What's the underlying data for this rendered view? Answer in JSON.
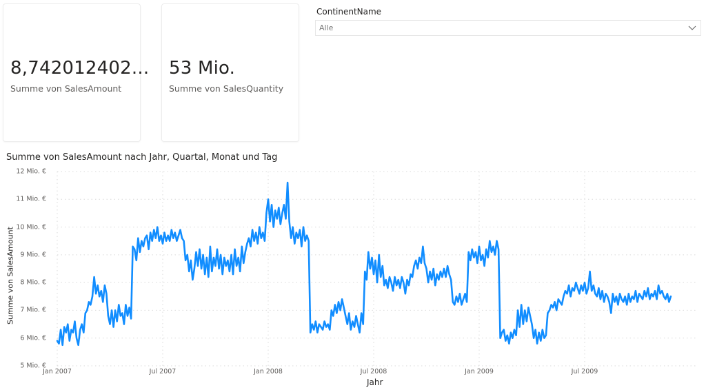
{
  "cards": [
    {
      "value": "8,742012402...",
      "label": "Summe von SalesAmount"
    },
    {
      "value": "53 Mio.",
      "label": "Summe von SalesQuantity"
    }
  ],
  "slicer": {
    "title": "ContinentName",
    "selected": "Alle",
    "icon": "chevron-down-icon"
  },
  "chart": {
    "title": "Summe von SalesAmount nach Jahr, Quartal, Monat und Tag",
    "ylabel": "Summe von SalesAmount",
    "xlabel": "Jahr",
    "y_ticks": [
      "12 Mio. €",
      "11 Mio. €",
      "10 Mio. €",
      "9 Mio. €",
      "8 Mio. €",
      "7 Mio. €",
      "6 Mio. €",
      "5 Mio. €"
    ],
    "x_ticks": [
      "Jan 2007",
      "Jul 2007",
      "Jan 2008",
      "Jul 2008",
      "Jan 2009",
      "Jul 2009"
    ],
    "line_color": "#118DFF"
  },
  "chart_data": {
    "type": "line",
    "title": "Summe von SalesAmount nach Jahr, Quartal, Monat und Tag",
    "xlabel": "Jahr",
    "ylabel": "Summe von SalesAmount",
    "ylim": [
      5,
      12
    ],
    "y_unit": "Mio. €",
    "x_range": [
      "2007-01-01",
      "2009-12-31"
    ],
    "x_tick_labels": [
      "Jan 2007",
      "Jul 2007",
      "Jan 2008",
      "Jul 2008",
      "Jan 2009",
      "Jul 2009"
    ],
    "y_tick_labels": [
      "5 Mio. €",
      "6 Mio. €",
      "7 Mio. €",
      "8 Mio. €",
      "9 Mio. €",
      "10 Mio. €",
      "11 Mio. €",
      "12 Mio. €"
    ],
    "grid": true,
    "legend": false,
    "series": [
      {
        "name": "Summe von SalesAmount",
        "x_month_offset": [
          0.0,
          0.1,
          0.2,
          0.3,
          0.4,
          0.5,
          0.6,
          0.7,
          0.8,
          0.9,
          1.0,
          1.1,
          1.2,
          1.3,
          1.4,
          1.5,
          1.6,
          1.7,
          1.8,
          1.9,
          2.0,
          2.1,
          2.2,
          2.3,
          2.4,
          2.5,
          2.6,
          2.7,
          2.8,
          2.9,
          3.0,
          3.1,
          3.2,
          3.3,
          3.4,
          3.5,
          3.6,
          3.7,
          3.8,
          3.9,
          4.0,
          4.1,
          4.2,
          4.3,
          4.4,
          4.5,
          4.6,
          4.7,
          4.8,
          4.9,
          5.0,
          5.1,
          5.2,
          5.3,
          5.4,
          5.5,
          5.6,
          5.7,
          5.8,
          5.9,
          6.0,
          6.1,
          6.2,
          6.3,
          6.4,
          6.5,
          6.6,
          6.7,
          6.8,
          6.9,
          7.0,
          7.1,
          7.2,
          7.3,
          7.4,
          7.5,
          7.6,
          7.7,
          7.8,
          7.9,
          8.0,
          8.1,
          8.2,
          8.3,
          8.4,
          8.5,
          8.6,
          8.7,
          8.8,
          8.9,
          9.0,
          9.1,
          9.2,
          9.3,
          9.4,
          9.5,
          9.6,
          9.7,
          9.8,
          9.9,
          10.0,
          10.1,
          10.2,
          10.3,
          10.4,
          10.5,
          10.6,
          10.7,
          10.8,
          10.9,
          11.0,
          11.1,
          11.2,
          11.3,
          11.4,
          11.5,
          11.6,
          11.7,
          11.8,
          11.9,
          12.0,
          12.1,
          12.2,
          12.3,
          12.4,
          12.5,
          12.6,
          12.7,
          12.8,
          12.9,
          13.0,
          13.1,
          13.2,
          13.3,
          13.4,
          13.5,
          13.6,
          13.7,
          13.8,
          13.9,
          14.0,
          14.1,
          14.2,
          14.3,
          14.4,
          14.5,
          14.6,
          14.7,
          14.8,
          14.9,
          15.0,
          15.1,
          15.2,
          15.3,
          15.4,
          15.5,
          15.6,
          15.7,
          15.8,
          15.9,
          16.0,
          16.1,
          16.2,
          16.3,
          16.4,
          16.5,
          16.6,
          16.7,
          16.8,
          16.9,
          17.0,
          17.1,
          17.2,
          17.3,
          17.4,
          17.5,
          17.6,
          17.7,
          17.8,
          17.9,
          18.0,
          18.1,
          18.2,
          18.3,
          18.4,
          18.5,
          18.6,
          18.7,
          18.8,
          18.9,
          19.0,
          19.1,
          19.2,
          19.3,
          19.4,
          19.5,
          19.6,
          19.7,
          19.8,
          19.9,
          20.0,
          20.1,
          20.2,
          20.3,
          20.4,
          20.5,
          20.6,
          20.7,
          20.8,
          20.9,
          21.0,
          21.1,
          21.2,
          21.3,
          21.4,
          21.5,
          21.6,
          21.7,
          21.8,
          21.9,
          22.0,
          22.1,
          22.2,
          22.3,
          22.4,
          22.5,
          22.6,
          22.7,
          22.8,
          22.9,
          23.0,
          23.1,
          23.2,
          23.3,
          23.4,
          23.5,
          23.6,
          23.7,
          23.8,
          23.9,
          24.0,
          24.1,
          24.2,
          24.3,
          24.4,
          24.5,
          24.6,
          24.7,
          24.8,
          24.9,
          25.0,
          25.1,
          25.2,
          25.3,
          25.4,
          25.5,
          25.6,
          25.7,
          25.8,
          25.9,
          26.0,
          26.1,
          26.2,
          26.3,
          26.4,
          26.5,
          26.6,
          26.7,
          26.8,
          26.9,
          27.0,
          27.1,
          27.2,
          27.3,
          27.4,
          27.5,
          27.6,
          27.7,
          27.8,
          27.9,
          28.0,
          28.1,
          28.2,
          28.3,
          28.4,
          28.5,
          28.6,
          28.7,
          28.8,
          28.9,
          29.0,
          29.1,
          29.2,
          29.3,
          29.4,
          29.5,
          29.6,
          29.7,
          29.8,
          29.9,
          30.0,
          30.1,
          30.2,
          30.3,
          30.4,
          30.5,
          30.6,
          30.7,
          30.8,
          30.9,
          31.0,
          31.1,
          31.2,
          31.3,
          31.4,
          31.5,
          31.6,
          31.7,
          31.8,
          31.9,
          32.0,
          32.1,
          32.2,
          32.3,
          32.4,
          32.5,
          32.6,
          32.7,
          32.8,
          32.9,
          33.0,
          33.1,
          33.2,
          33.3,
          33.4,
          33.5,
          33.6,
          33.7,
          33.8,
          33.9,
          34.0,
          34.1,
          34.2,
          34.3,
          34.4,
          34.5,
          34.6,
          34.7,
          34.8,
          34.9,
          35.0,
          35.1,
          35.2,
          35.3,
          35.4,
          35.5,
          35.6,
          35.7,
          35.8,
          35.9
        ],
        "values": [
          5.9,
          5.8,
          6.3,
          5.75,
          6.4,
          6.2,
          6.5,
          5.9,
          6.3,
          6.2,
          6.6,
          6.0,
          5.75,
          6.3,
          6.5,
          6.2,
          6.9,
          7.0,
          7.3,
          7.2,
          7.5,
          8.2,
          7.6,
          7.9,
          7.5,
          7.7,
          7.3,
          7.9,
          7.6,
          6.8,
          6.5,
          7.0,
          6.4,
          7.0,
          6.6,
          7.2,
          6.8,
          6.9,
          6.5,
          7.2,
          6.8,
          7.1,
          6.7,
          9.3,
          9.2,
          8.8,
          9.6,
          9.1,
          9.5,
          9.3,
          9.6,
          9.7,
          9.2,
          9.8,
          9.5,
          9.9,
          9.6,
          10.0,
          9.5,
          9.7,
          9.4,
          9.8,
          9.5,
          9.7,
          9.5,
          9.9,
          9.6,
          9.8,
          9.5,
          9.7,
          9.9,
          9.6,
          9.5,
          8.8,
          9.0,
          8.4,
          8.8,
          8.1,
          8.5,
          9.1,
          8.6,
          9.2,
          8.5,
          9.0,
          8.3,
          8.9,
          8.2,
          9.3,
          8.4,
          8.9,
          8.6,
          9.2,
          8.5,
          9.0,
          8.3,
          8.9,
          8.6,
          8.8,
          8.4,
          9.0,
          8.3,
          9.2,
          8.6,
          8.9,
          8.4,
          9.3,
          8.7,
          9.1,
          9.4,
          9.6,
          9.3,
          9.9,
          9.5,
          9.8,
          9.4,
          10.0,
          9.6,
          9.8,
          9.5,
          10.5,
          11.0,
          10.2,
          10.8,
          10.0,
          10.6,
          10.3,
          10.7,
          10.1,
          10.5,
          10.8,
          10.3,
          11.6,
          10.2,
          9.6,
          10.0,
          9.4,
          9.8,
          9.6,
          9.9,
          9.3,
          10.0,
          9.5,
          9.7,
          9.5,
          6.2,
          6.5,
          6.3,
          6.6,
          6.2,
          6.5,
          6.4,
          6.3,
          6.6,
          6.4,
          6.5,
          6.3,
          7.0,
          6.8,
          7.2,
          6.9,
          7.3,
          7.0,
          7.4,
          7.1,
          6.8,
          6.5,
          6.9,
          6.3,
          6.6,
          6.4,
          6.8,
          6.5,
          6.2,
          6.9,
          6.5,
          8.4,
          8.1,
          9.1,
          8.5,
          8.9,
          8.3,
          8.8,
          8.0,
          9.0,
          8.2,
          8.6,
          7.9,
          8.1,
          7.8,
          8.2,
          8.0,
          7.7,
          8.2,
          7.9,
          8.1,
          7.8,
          8.2,
          8.0,
          7.6,
          8.1,
          7.9,
          8.3,
          8.2,
          8.6,
          8.8,
          8.5,
          8.9,
          8.7,
          9.3,
          8.7,
          8.5,
          8.0,
          8.4,
          8.1,
          8.5,
          7.9,
          8.3,
          8.1,
          8.4,
          8.2,
          8.5,
          8.2,
          8.6,
          8.3,
          8.1,
          7.3,
          7.2,
          7.5,
          7.3,
          7.6,
          7.2,
          7.4,
          7.6,
          7.3,
          9.1,
          8.8,
          9.2,
          8.9,
          9.1,
          8.7,
          9.3,
          8.8,
          9.0,
          8.6,
          9.2,
          8.9,
          9.5,
          9.1,
          9.3,
          9.0,
          9.5,
          9.2,
          6.0,
          6.2,
          6.3,
          5.9,
          6.1,
          5.8,
          6.2,
          6.0,
          6.3,
          6.1,
          7.0,
          6.4,
          7.2,
          6.5,
          7.0,
          6.6,
          7.1,
          6.8,
          6.5,
          6.0,
          6.3,
          5.8,
          6.2,
          5.9,
          6.3,
          6.0,
          6.1,
          6.9,
          7.0,
          7.2,
          7.1,
          7.3,
          7.0,
          7.4,
          7.3,
          7.2,
          7.5,
          7.7,
          7.6,
          7.9,
          7.5,
          7.8,
          7.7,
          8.0,
          7.8,
          7.6,
          7.9,
          7.7,
          8.0,
          7.6,
          7.8,
          8.4,
          7.7,
          7.9,
          7.6,
          7.5,
          7.8,
          7.4,
          7.7,
          7.3,
          7.6,
          7.5,
          7.3,
          6.9,
          7.6,
          7.3,
          7.5,
          7.2,
          7.6,
          7.4,
          7.3,
          7.5,
          7.2,
          7.6,
          7.3,
          7.5,
          7.4,
          7.7,
          7.3,
          7.6,
          7.5,
          7.4,
          7.7,
          7.5,
          7.8,
          7.4,
          7.6,
          7.5,
          7.7,
          7.4,
          7.9,
          7.6,
          7.7,
          7.5,
          7.4,
          7.6,
          7.3,
          7.5
        ]
      }
    ]
  }
}
